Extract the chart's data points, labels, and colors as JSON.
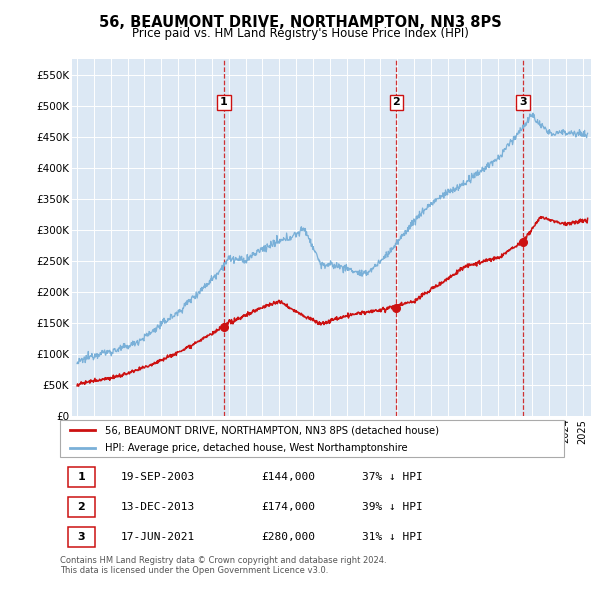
{
  "title": "56, BEAUMONT DRIVE, NORTHAMPTON, NN3 8PS",
  "subtitle": "Price paid vs. HM Land Registry's House Price Index (HPI)",
  "ylabel_ticks": [
    "£0",
    "£50K",
    "£100K",
    "£150K",
    "£200K",
    "£250K",
    "£300K",
    "£350K",
    "£400K",
    "£450K",
    "£500K",
    "£550K"
  ],
  "ylim": [
    0,
    575000
  ],
  "hpi_color": "#7ab0d8",
  "paid_color": "#cc1111",
  "vline_color": "#cc1111",
  "bg_color": "#dce8f4",
  "grid_color": "#ffffff",
  "sale_events": [
    {
      "label": "1",
      "date": "2003-09-19",
      "price": 144000,
      "x_year": 2003.72
    },
    {
      "label": "2",
      "date": "2013-12-13",
      "price": 174000,
      "x_year": 2013.95
    },
    {
      "label": "3",
      "date": "2021-06-17",
      "price": 280000,
      "x_year": 2021.46
    }
  ],
  "legend_line1": "56, BEAUMONT DRIVE, NORTHAMPTON, NN3 8PS (detached house)",
  "legend_line2": "HPI: Average price, detached house, West Northamptonshire",
  "table_rows": [
    {
      "num": "1",
      "date": "19-SEP-2003",
      "price": "£144,000",
      "note": "37% ↓ HPI"
    },
    {
      "num": "2",
      "date": "13-DEC-2013",
      "price": "£174,000",
      "note": "39% ↓ HPI"
    },
    {
      "num": "3",
      "date": "17-JUN-2021",
      "price": "£280,000",
      "note": "31% ↓ HPI"
    }
  ],
  "footer1": "Contains HM Land Registry data © Crown copyright and database right 2024.",
  "footer2": "This data is licensed under the Open Government Licence v3.0.",
  "xmin": 1995.0,
  "xmax": 2025.3
}
